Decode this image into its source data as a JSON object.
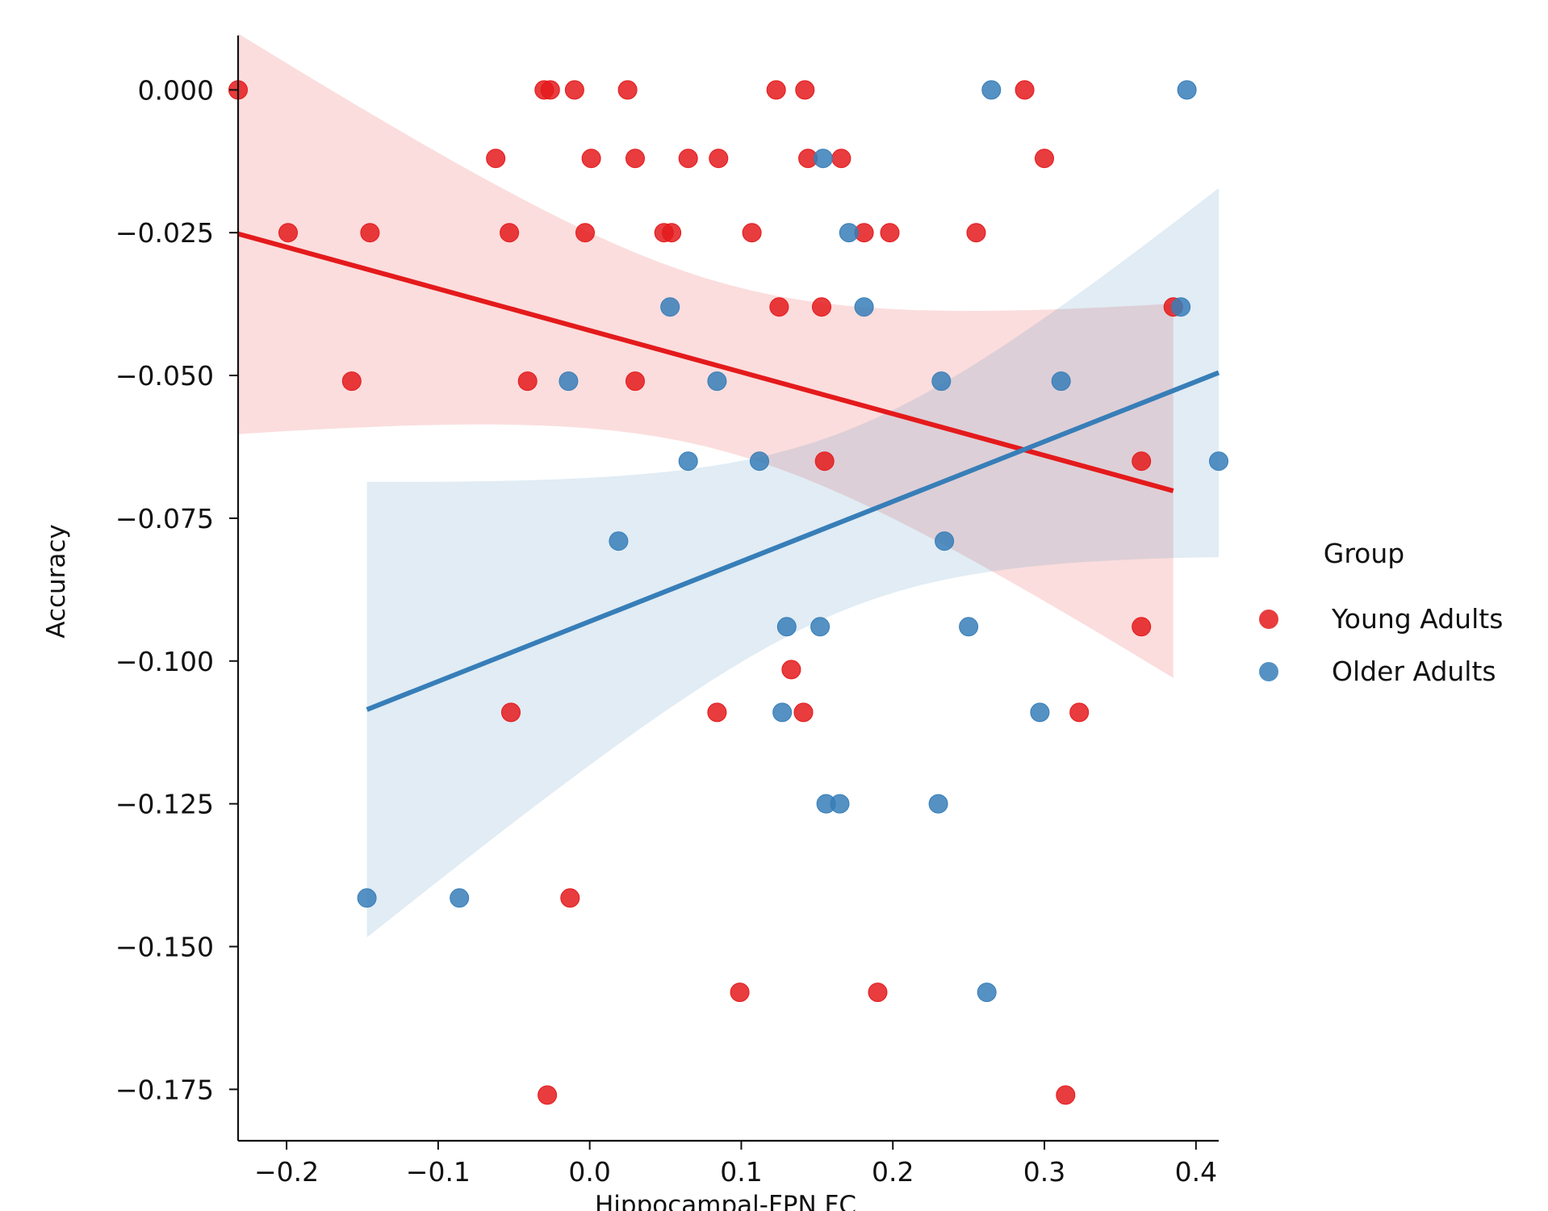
{
  "chart_data": {
    "type": "scatter",
    "title": "",
    "xlabel": "Hippocampal-FPN FC",
    "ylabel": "Accuracy",
    "xlim": [
      -0.232,
      0.415
    ],
    "ylim": [
      -0.184,
      0.0115
    ],
    "xticks": [
      {
        "value": -0.2,
        "label": "−0.2"
      },
      {
        "value": -0.1,
        "label": "−0.1"
      },
      {
        "value": 0.0,
        "label": "0.0"
      },
      {
        "value": 0.1,
        "label": "0.1"
      },
      {
        "value": 0.2,
        "label": "0.2"
      },
      {
        "value": 0.3,
        "label": "0.3"
      },
      {
        "value": 0.4,
        "label": "0.4"
      }
    ],
    "yticks": [
      {
        "value": 0.0,
        "label": "0.000"
      },
      {
        "value": -0.025,
        "label": "−0.025"
      },
      {
        "value": -0.05,
        "label": "−0.050"
      },
      {
        "value": -0.075,
        "label": "−0.075"
      },
      {
        "value": -0.1,
        "label": "−0.100"
      },
      {
        "value": -0.125,
        "label": "−0.125"
      },
      {
        "value": -0.15,
        "label": "−0.150"
      },
      {
        "value": -0.175,
        "label": "−0.175"
      }
    ],
    "grid": false,
    "legend": {
      "title": "Group",
      "placement": "right"
    },
    "series": [
      {
        "name": "Young Adults",
        "color": "#e41a1c",
        "points": [
          [
            -0.232,
            0.0
          ],
          [
            -0.03,
            0.0
          ],
          [
            -0.026,
            0.0
          ],
          [
            -0.01,
            0.0
          ],
          [
            0.025,
            0.0
          ],
          [
            0.123,
            0.0
          ],
          [
            0.142,
            0.0
          ],
          [
            0.287,
            0.0
          ],
          [
            -0.062,
            -0.012
          ],
          [
            0.001,
            -0.012
          ],
          [
            0.03,
            -0.012
          ],
          [
            0.065,
            -0.012
          ],
          [
            0.085,
            -0.012
          ],
          [
            0.144,
            -0.012
          ],
          [
            0.166,
            -0.012
          ],
          [
            0.3,
            -0.012
          ],
          [
            -0.199,
            -0.025
          ],
          [
            -0.145,
            -0.025
          ],
          [
            -0.053,
            -0.025
          ],
          [
            -0.003,
            -0.025
          ],
          [
            0.049,
            -0.025
          ],
          [
            0.054,
            -0.025
          ],
          [
            0.107,
            -0.025
          ],
          [
            0.181,
            -0.025
          ],
          [
            0.198,
            -0.025
          ],
          [
            0.255,
            -0.025
          ],
          [
            0.125,
            -0.038
          ],
          [
            0.153,
            -0.038
          ],
          [
            0.385,
            -0.038
          ],
          [
            -0.157,
            -0.051
          ],
          [
            -0.041,
            -0.051
          ],
          [
            0.03,
            -0.051
          ],
          [
            0.155,
            -0.065
          ],
          [
            0.364,
            -0.065
          ],
          [
            0.364,
            -0.094
          ],
          [
            0.133,
            -0.1015
          ],
          [
            -0.052,
            -0.109
          ],
          [
            0.084,
            -0.109
          ],
          [
            0.141,
            -0.109
          ],
          [
            0.323,
            -0.109
          ],
          [
            -0.013,
            -0.1415
          ],
          [
            0.099,
            -0.158
          ],
          [
            0.19,
            -0.158
          ],
          [
            -0.028,
            -0.176
          ],
          [
            0.314,
            -0.176
          ]
        ],
        "fit": {
          "x": [
            -0.232,
            0.385
          ],
          "y": [
            -0.0252,
            -0.0702
          ]
        }
      },
      {
        "name": "Older Adults",
        "color": "#377eb8",
        "points": [
          [
            0.265,
            0.0
          ],
          [
            0.394,
            0.0
          ],
          [
            0.154,
            -0.012
          ],
          [
            0.171,
            -0.025
          ],
          [
            0.053,
            -0.038
          ],
          [
            0.181,
            -0.038
          ],
          [
            0.39,
            -0.038
          ],
          [
            -0.014,
            -0.051
          ],
          [
            0.084,
            -0.051
          ],
          [
            0.232,
            -0.051
          ],
          [
            0.311,
            -0.051
          ],
          [
            0.065,
            -0.065
          ],
          [
            0.112,
            -0.065
          ],
          [
            0.415,
            -0.065
          ],
          [
            0.019,
            -0.079
          ],
          [
            0.234,
            -0.079
          ],
          [
            0.13,
            -0.094
          ],
          [
            0.152,
            -0.094
          ],
          [
            0.25,
            -0.094
          ],
          [
            0.127,
            -0.109
          ],
          [
            0.297,
            -0.109
          ],
          [
            0.156,
            -0.125
          ],
          [
            0.165,
            -0.125
          ],
          [
            0.23,
            -0.125
          ],
          [
            -0.147,
            -0.1415
          ],
          [
            -0.086,
            -0.1415
          ],
          [
            0.262,
            -0.158
          ]
        ],
        "fit": {
          "x": [
            -0.147,
            0.415
          ],
          "y": [
            -0.1085,
            -0.0495
          ]
        }
      }
    ]
  }
}
